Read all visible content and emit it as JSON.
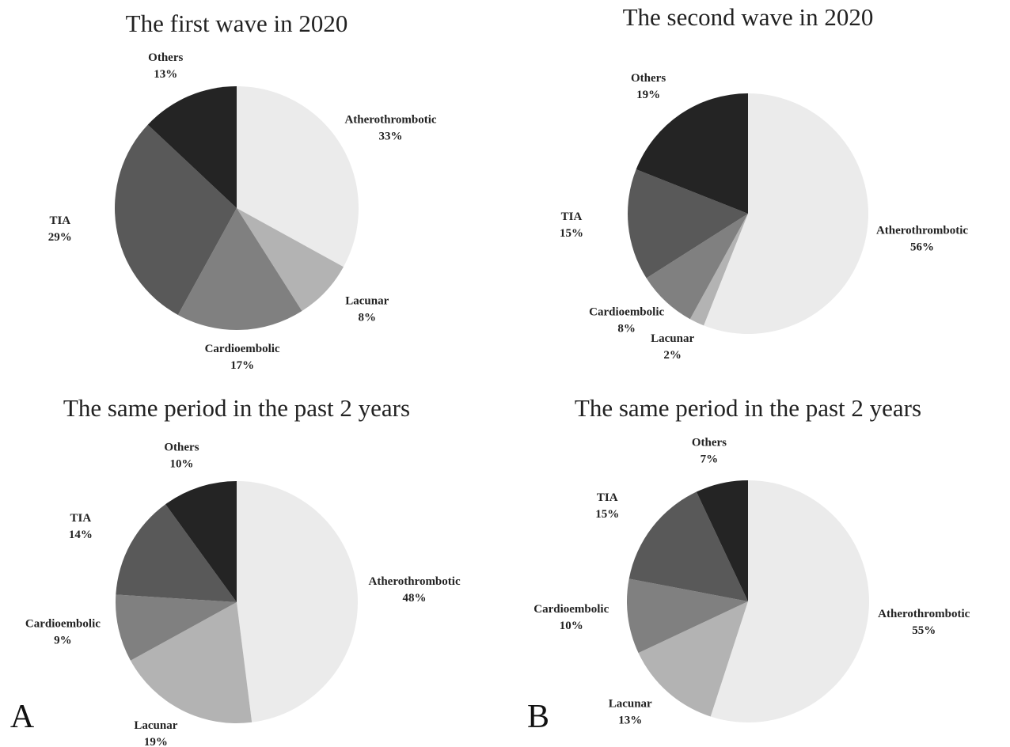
{
  "chart_data": [
    {
      "type": "pie",
      "title": "The first wave in 2020",
      "categories": [
        "Atherothrombotic",
        "Lacunar",
        "Cardioembolic",
        "TIA",
        "Others"
      ],
      "values": [
        33,
        8,
        17,
        29,
        13
      ],
      "value_labels": [
        "33%",
        "8%",
        "17%",
        "29%",
        "13%"
      ],
      "colors": [
        "#ebebeb",
        "#b3b3b3",
        "#808080",
        "#595959",
        "#242424"
      ]
    },
    {
      "type": "pie",
      "title": "The second wave in 2020",
      "categories": [
        "Atherothrombotic",
        "Lacunar",
        "Cardioembolic",
        "TIA",
        "Others"
      ],
      "values": [
        56,
        2,
        8,
        15,
        19
      ],
      "value_labels": [
        "56%",
        "2%",
        "8%",
        "15%",
        "19%"
      ],
      "colors": [
        "#ebebeb",
        "#b3b3b3",
        "#808080",
        "#595959",
        "#242424"
      ]
    },
    {
      "type": "pie",
      "title": "The same period in the past 2 years",
      "panel": "A",
      "categories": [
        "Atherothrombotic",
        "Lacunar",
        "Cardioembolic",
        "TIA",
        "Others"
      ],
      "values": [
        48,
        19,
        9,
        14,
        10
      ],
      "value_labels": [
        "48%",
        "19%",
        "9%",
        "14%",
        "10%"
      ],
      "colors": [
        "#ebebeb",
        "#b3b3b3",
        "#808080",
        "#595959",
        "#242424"
      ]
    },
    {
      "type": "pie",
      "title": "The same period in the past 2 years",
      "panel": "B",
      "categories": [
        "Atherothrombotic",
        "Lacunar",
        "Cardioembolic",
        "TIA",
        "Others"
      ],
      "values": [
        55,
        13,
        10,
        15,
        7
      ],
      "value_labels": [
        "55%",
        "13%",
        "10%",
        "15%",
        "7%"
      ],
      "colors": [
        "#ebebeb",
        "#b3b3b3",
        "#808080",
        "#595959",
        "#242424"
      ]
    }
  ]
}
